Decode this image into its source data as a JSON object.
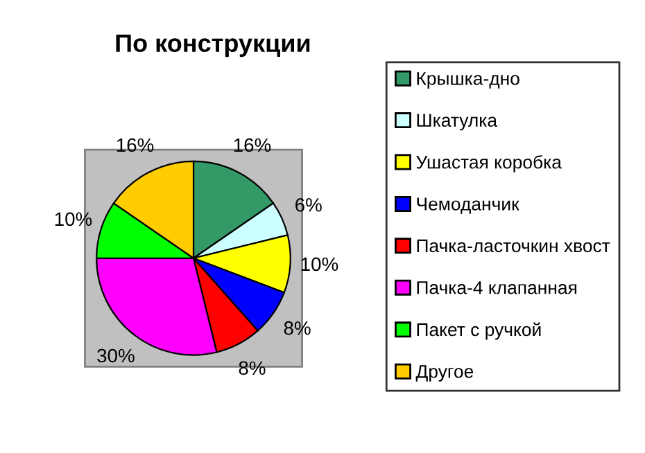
{
  "chart_data": {
    "type": "pie",
    "title": "По конструкции",
    "categories": [
      "Крышка-дно",
      "Шкатулка",
      "Ушастая коробка",
      "Чемоданчик",
      "Пачка-ласточкин хвост",
      "Пачка-4 клапанная",
      "Пакет с ручкой",
      "Другое"
    ],
    "values": [
      16,
      6,
      10,
      8,
      8,
      30,
      10,
      16
    ],
    "colors": [
      "#339966",
      "#ccffff",
      "#ffff00",
      "#0000ff",
      "#ff0000",
      "#ff00ff",
      "#00ff00",
      "#ffcc00"
    ],
    "value_labels": [
      "16%",
      "6%",
      "10%",
      "8%",
      "8%",
      "30%",
      "10%",
      "16%"
    ],
    "legend": "right"
  }
}
